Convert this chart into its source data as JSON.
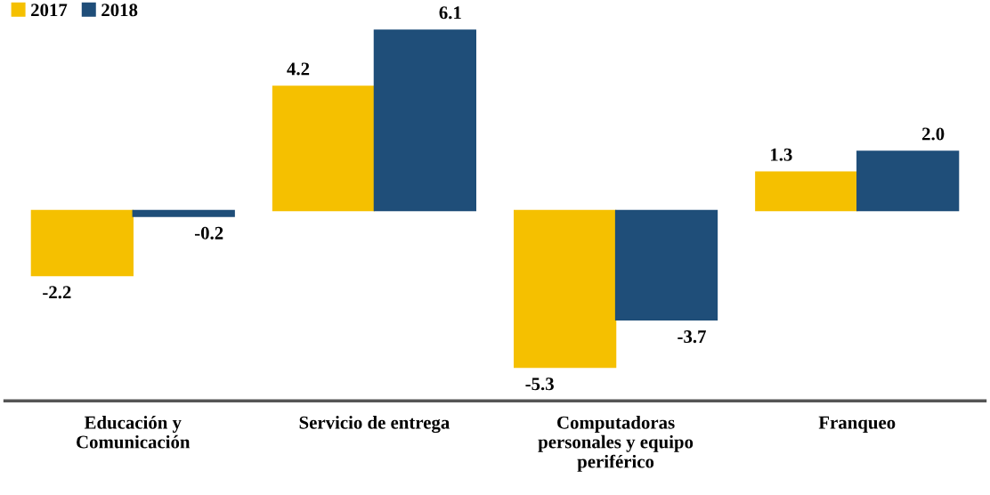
{
  "chart_data": {
    "type": "bar",
    "categories": [
      "Educación y\nComunicación",
      "Servicio de entrega",
      "Computadoras\npersonales y equipo\nperiférico",
      "Franqueo"
    ],
    "series": [
      {
        "name": "2017",
        "color": "#f5c000",
        "values": [
          -2.2,
          4.2,
          -5.3,
          1.3
        ],
        "value_labels": [
          "-2.2",
          "4.2",
          "-5.3",
          "1.3"
        ]
      },
      {
        "name": "2018",
        "color": "#1f4e79",
        "values": [
          -0.2,
          6.1,
          -3.7,
          2.0
        ],
        "value_labels": [
          "-0.2",
          "6.1",
          "-3.7",
          "2.0"
        ]
      }
    ],
    "legend": "top left",
    "grid": false,
    "tick_labels": "x"
  }
}
